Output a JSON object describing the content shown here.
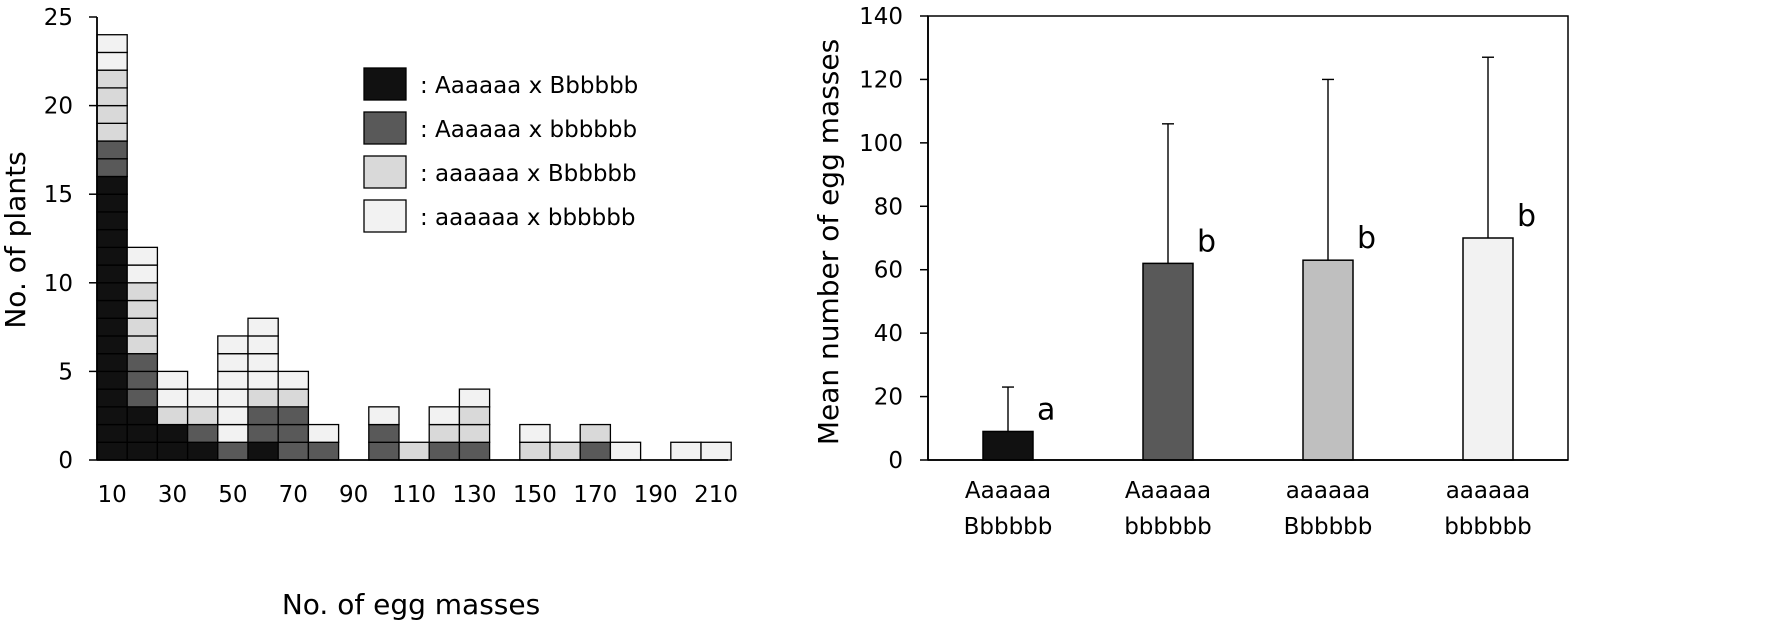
{
  "chart_data": [
    {
      "type": "bar",
      "subtype": "stacked-histogram",
      "xlabel": "No. of egg masses",
      "ylabel": "No. of plants",
      "ylim": [
        0,
        25
      ],
      "y_ticks": [
        "0",
        "5",
        "10",
        "15",
        "20",
        "25"
      ],
      "x_tick_labels": [
        "10",
        "30",
        "50",
        "70",
        "90",
        "110",
        "130",
        "150",
        "170",
        "190",
        "210"
      ],
      "bin_width": 10,
      "bin_centers": [
        10,
        20,
        30,
        40,
        50,
        60,
        70,
        80,
        90,
        100,
        110,
        120,
        130,
        140,
        150,
        160,
        170,
        180,
        190,
        200,
        210
      ],
      "legend_position": "top-right",
      "series": [
        {
          "name": ": Aaaaaa x Bbbbbb",
          "color": "#111111",
          "values": [
            16,
            3,
            2,
            1,
            0,
            1,
            0,
            0,
            0,
            0,
            0,
            0,
            0,
            0,
            0,
            0,
            0,
            0,
            0,
            0,
            0
          ]
        },
        {
          "name": ": Aaaaaa x bbbbbb",
          "color": "#595959",
          "values": [
            2,
            3,
            0,
            1,
            1,
            2,
            3,
            1,
            0,
            2,
            0,
            1,
            1,
            0,
            0,
            0,
            1,
            0,
            0,
            0,
            0
          ]
        },
        {
          "name": ": aaaaaa x Bbbbbb",
          "color": "#d9d9d9",
          "values": [
            4,
            4,
            1,
            1,
            0,
            1,
            1,
            0,
            0,
            0,
            1,
            1,
            2,
            0,
            1,
            1,
            1,
            0,
            0,
            0,
            0
          ]
        },
        {
          "name": ": aaaaaa x bbbbbb",
          "color": "#f2f2f2",
          "values": [
            2,
            2,
            2,
            1,
            6,
            4,
            1,
            1,
            0,
            1,
            0,
            1,
            1,
            0,
            1,
            0,
            0,
            1,
            0,
            1,
            1
          ]
        }
      ]
    },
    {
      "type": "bar",
      "ylabel": "Mean number of egg masses",
      "xlabel": "",
      "ylim": [
        0,
        140
      ],
      "y_ticks": [
        "0",
        "20",
        "40",
        "60",
        "80",
        "100",
        "120",
        "140"
      ],
      "categories": [
        {
          "line1": "Aaaaaa",
          "line2": "Bbbbbb"
        },
        {
          "line1": "Aaaaaa",
          "line2": "bbbbbb"
        },
        {
          "line1": "aaaaaa",
          "line2": "Bbbbbb"
        },
        {
          "line1": "aaaaaa",
          "line2": "bbbbbb"
        }
      ],
      "values": [
        9,
        62,
        63,
        70
      ],
      "error_upper": [
        23,
        106,
        120,
        127
      ],
      "significance": [
        "a",
        "b",
        "b",
        "b"
      ],
      "colors": [
        "#111111",
        "#595959",
        "#bfbfbf",
        "#f2f2f2"
      ]
    }
  ]
}
